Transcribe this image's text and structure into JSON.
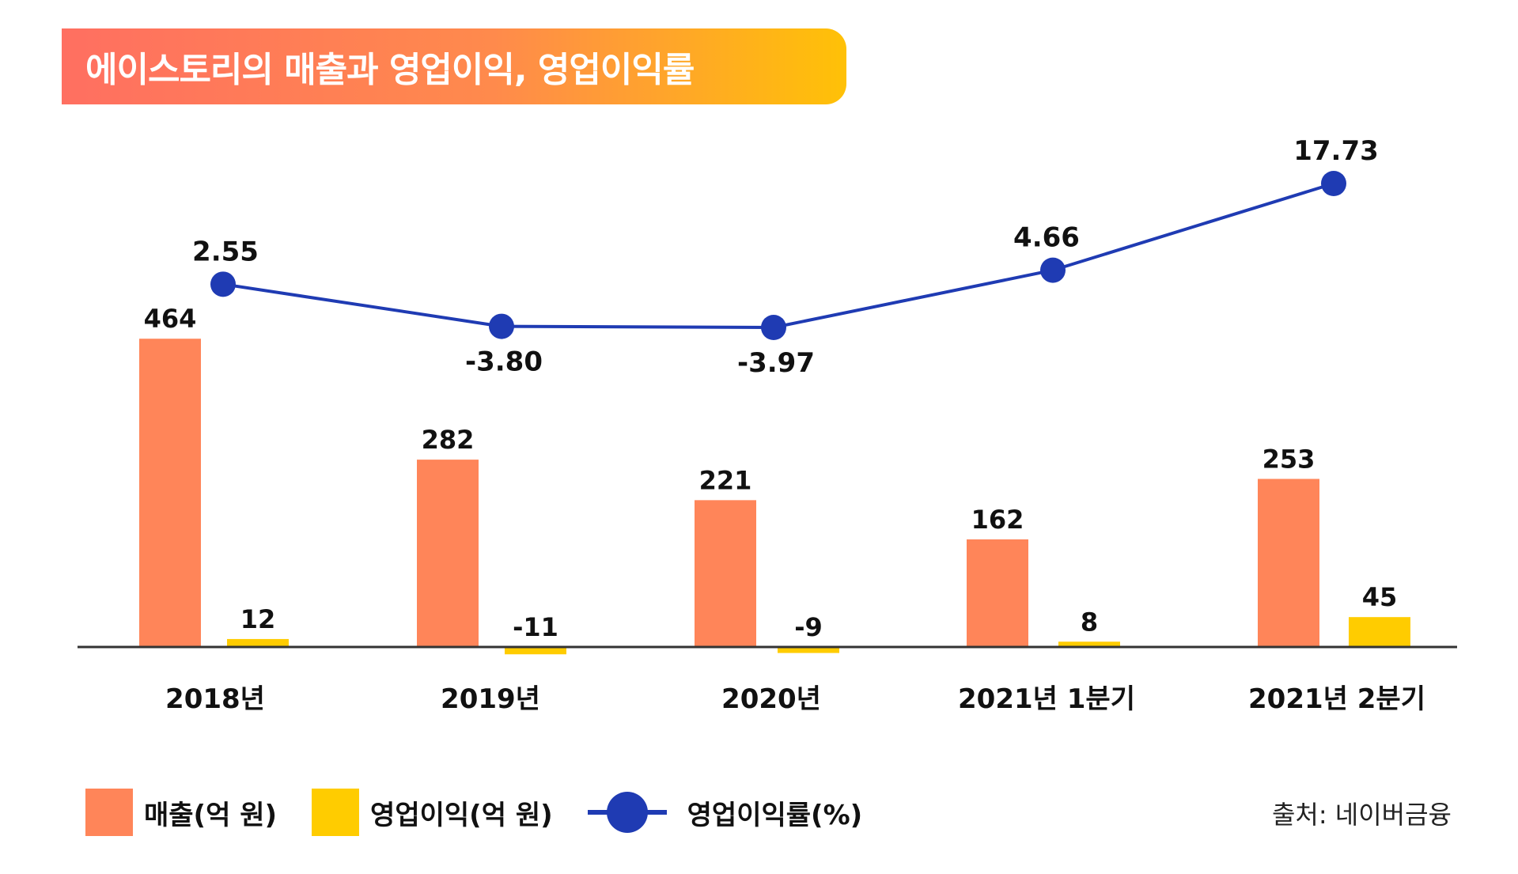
{
  "title": "에이스토리의 매출과 영업이익, 영업이익률",
  "source": "출처: 네이버금융",
  "colors": {
    "revenue": "#ff8559",
    "profit": "#ffcc00",
    "margin": "#1f3bb3",
    "axis": "#333333"
  },
  "chart_data": {
    "type": "bar",
    "categories": [
      "2018년",
      "2019년",
      "2020년",
      "2021년 1분기",
      "2021년 2분기"
    ],
    "series": [
      {
        "name": "매출(억 원)",
        "kind": "bar",
        "values": [
          464,
          282,
          221,
          162,
          253
        ],
        "labels": [
          "464",
          "282",
          "221",
          "162",
          "253"
        ]
      },
      {
        "name": "영업이익(억 원)",
        "kind": "bar",
        "values": [
          12,
          -11,
          -9,
          8,
          45
        ],
        "labels": [
          "12",
          "-11",
          "-9",
          "8",
          "45"
        ]
      },
      {
        "name": "영업이익률(%)",
        "kind": "line",
        "values": [
          2.55,
          -3.8,
          -3.97,
          4.66,
          17.73
        ],
        "labels": [
          "2.55",
          "-3.80",
          "-3.97",
          "4.66",
          "17.73"
        ]
      }
    ],
    "legend": [
      {
        "label": "매출(억 원)",
        "marker": "square"
      },
      {
        "label": "영업이익(억 원)",
        "marker": "square"
      },
      {
        "label": "영업이익률(%)",
        "marker": "line-dot"
      }
    ]
  }
}
